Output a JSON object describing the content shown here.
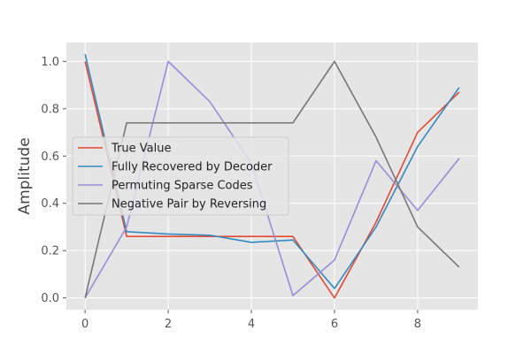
{
  "chart_data": {
    "type": "line",
    "title": "",
    "xlabel": "",
    "ylabel": "Amplitude",
    "x": [
      0,
      1,
      2,
      3,
      4,
      5,
      6,
      7,
      8,
      9
    ],
    "xlim": [
      -0.45,
      9.45
    ],
    "ylim": [
      -0.05,
      1.08
    ],
    "xticks": [
      0,
      2,
      4,
      6,
      8
    ],
    "yticks": [
      0.0,
      0.2,
      0.4,
      0.6,
      0.8,
      1.0
    ],
    "ytick_labels": [
      "0.0",
      "0.2",
      "0.4",
      "0.6",
      "0.8",
      "1.0"
    ],
    "grid": true,
    "legend_position": "center-left",
    "series": [
      {
        "name": "True Value",
        "color": "#E24A33",
        "values": [
          1.0,
          0.26,
          0.26,
          0.26,
          0.26,
          0.26,
          0.0,
          0.32,
          0.7,
          0.87
        ]
      },
      {
        "name": "Fully Recovered by Decoder",
        "color": "#348ABD",
        "values": [
          1.03,
          0.28,
          0.27,
          0.265,
          0.235,
          0.245,
          0.04,
          0.3,
          0.64,
          0.89
        ]
      },
      {
        "name": "Permuting Sparse Codes",
        "color": "#988ED5",
        "values": [
          0.0,
          0.3,
          1.0,
          0.83,
          0.57,
          0.01,
          0.16,
          0.58,
          0.37,
          0.59
        ]
      },
      {
        "name": "Negative Pair by Reversing",
        "color": "#777777",
        "values": [
          0.0,
          0.74,
          0.74,
          0.74,
          0.74,
          0.74,
          1.0,
          0.68,
          0.3,
          0.13
        ]
      }
    ],
    "style": {
      "plot_background": "#E5E5E5",
      "grid_color": "#FFFFFF",
      "tick_color": "#555555",
      "legend_background": "#E5E5E5",
      "legend_border": "#CCCCCC"
    }
  }
}
